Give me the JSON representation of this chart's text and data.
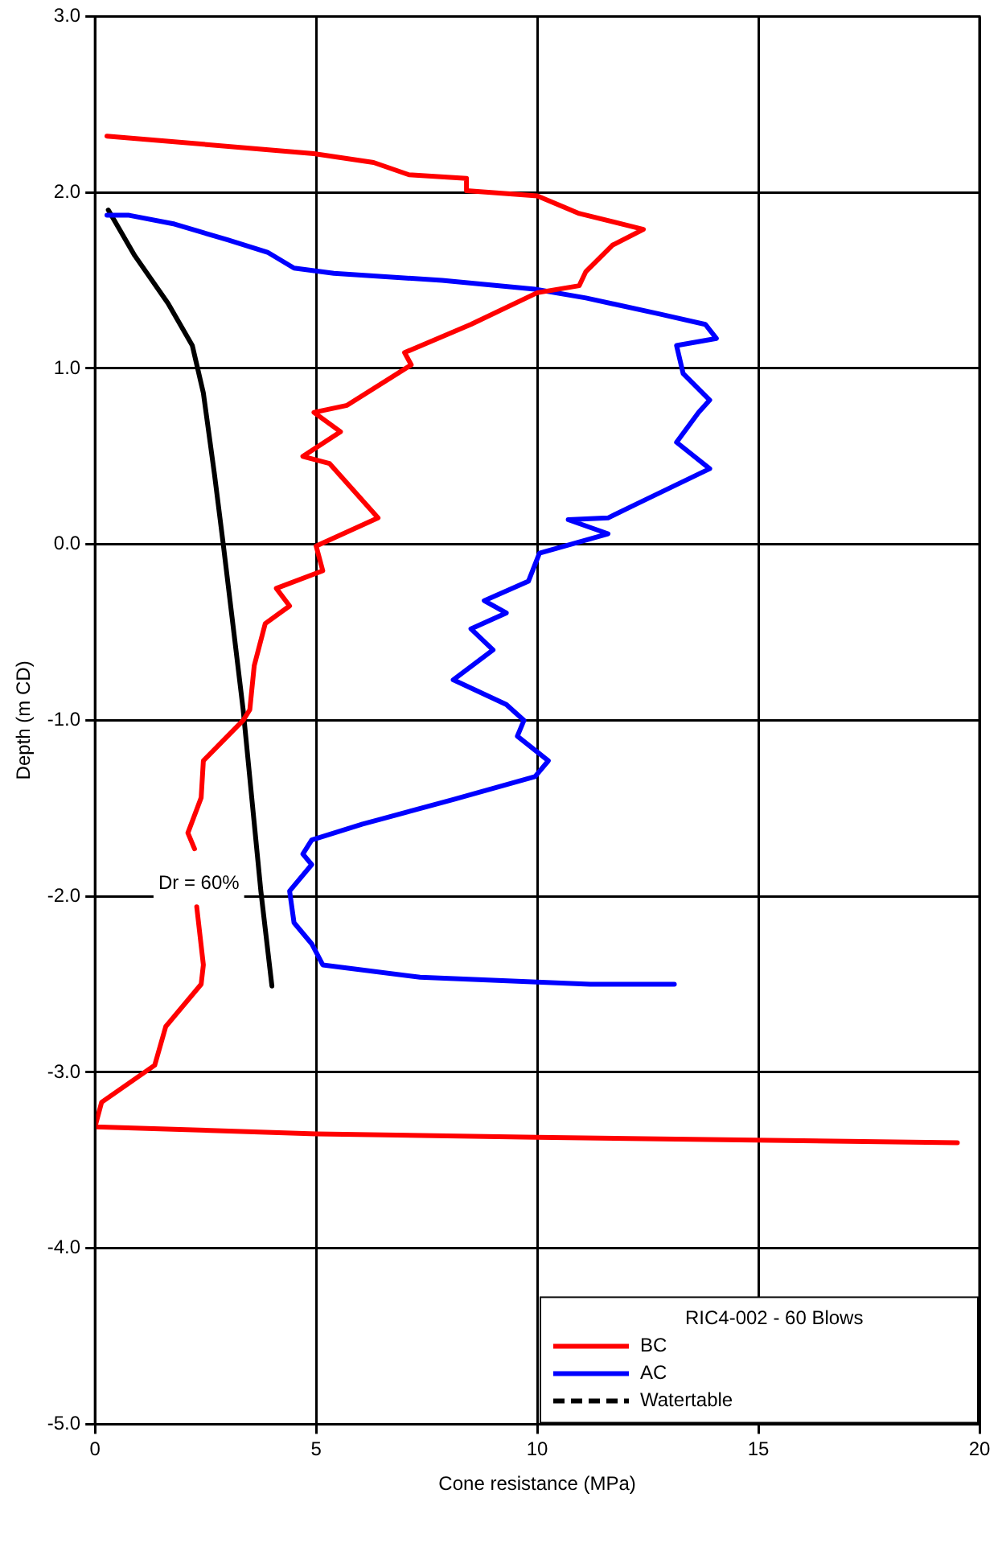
{
  "chart_data": {
    "type": "line",
    "xlabel": "Cone resistance (MPa)",
    "ylabel": "Depth (m CD)",
    "legend_title": "RIC4-002 - 60 Blows",
    "legend": "bottom right",
    "grid": true,
    "marker": "none",
    "xlim": [
      0,
      20
    ],
    "xticks": [
      0,
      5,
      10,
      15,
      20
    ],
    "ylim": [
      -5,
      3
    ],
    "yticks": [
      {
        "value": 3,
        "label": "3.0"
      },
      {
        "value": 2,
        "label": "2.0"
      },
      {
        "value": 1,
        "label": "1.0"
      },
      {
        "value": 0,
        "label": "0.0"
      },
      {
        "value": -1,
        "label": "-1.0"
      },
      {
        "value": -2,
        "label": "-2.0"
      },
      {
        "value": -3,
        "label": "-3.0"
      },
      {
        "value": -4,
        "label": "-4.0"
      },
      {
        "value": -5,
        "label": "-5.0"
      }
    ],
    "annotations": [
      {
        "text": "Dr = 60%",
        "x": 3.7,
        "y": -1.93
      }
    ],
    "series": [
      {
        "name": "BC",
        "color": "#ff0000",
        "line_style": "solid",
        "x": [
          0.27,
          4.95,
          6.3,
          7.1,
          8.4,
          8.4,
          10.0,
          10.95,
          12.4,
          11.7,
          11.1,
          10.95,
          10.0,
          8.5,
          7.0,
          7.15,
          5.7,
          4.95,
          5.55,
          4.7,
          5.3,
          6.4,
          5.0,
          5.15,
          4.1,
          4.4,
          3.85,
          3.6,
          3.5,
          3.35,
          2.45,
          2.4,
          2.1,
          2.25,
          null,
          2.3,
          2.45,
          2.4,
          1.6,
          1.35,
          0.15,
          0.0,
          5.0,
          10.0,
          19.5
        ],
        "values": [
          2.32,
          2.22,
          2.17,
          2.1,
          2.08,
          2.01,
          1.98,
          1.88,
          1.79,
          1.7,
          1.55,
          1.47,
          1.43,
          1.25,
          1.09,
          1.02,
          0.79,
          0.75,
          0.64,
          0.5,
          0.46,
          0.15,
          -0.01,
          -0.15,
          -0.25,
          -0.35,
          -0.45,
          -0.69,
          -0.94,
          -1.0,
          -1.23,
          -1.44,
          -1.64,
          -1.73,
          null,
          -2.06,
          -2.39,
          -2.5,
          -2.74,
          -2.96,
          -3.17,
          -3.31,
          -3.35,
          -3.37,
          -3.4
        ]
      },
      {
        "name": "AC",
        "color": "#0000ff",
        "line_style": "solid",
        "x": [
          0.27,
          0.77,
          1.8,
          3.0,
          3.9,
          4.5,
          5.4,
          7.85,
          9.95,
          11.1,
          12.75,
          13.8,
          14.05,
          13.15,
          13.3,
          13.9,
          13.65,
          13.15,
          13.9,
          12.25,
          11.6,
          10.7,
          11.6,
          10.05,
          9.8,
          8.8,
          9.3,
          8.5,
          9.0,
          8.1,
          9.3,
          9.7,
          9.55,
          10.25,
          9.95,
          8.1,
          6.05,
          4.9,
          4.7,
          4.9,
          4.4,
          4.5,
          4.9,
          5.15,
          7.35,
          11.2,
          13.1
        ],
        "values": [
          1.87,
          1.87,
          1.82,
          1.73,
          1.66,
          1.57,
          1.54,
          1.5,
          1.45,
          1.4,
          1.31,
          1.25,
          1.17,
          1.13,
          0.97,
          0.82,
          0.75,
          0.58,
          0.43,
          0.23,
          0.15,
          0.14,
          0.06,
          -0.05,
          -0.21,
          -0.32,
          -0.39,
          -0.48,
          -0.6,
          -0.77,
          -0.91,
          -1.0,
          -1.09,
          -1.23,
          -1.32,
          -1.45,
          -1.59,
          -1.68,
          -1.76,
          -1.82,
          -1.97,
          -2.15,
          -2.27,
          -2.39,
          -2.46,
          -2.5,
          -2.5
        ]
      },
      {
        "color": "#000000",
        "line_style": "solid",
        "x": [
          0.3,
          0.9,
          1.65,
          2.2,
          2.45,
          2.7,
          2.9,
          3.35,
          3.75,
          4.0
        ],
        "values": [
          1.9,
          1.64,
          1.37,
          1.13,
          0.86,
          0.4,
          0.0,
          -0.94,
          -1.97,
          -2.51
        ]
      },
      {
        "name": "Watertable",
        "color": "#000000",
        "line_style": "dashed"
      }
    ]
  }
}
